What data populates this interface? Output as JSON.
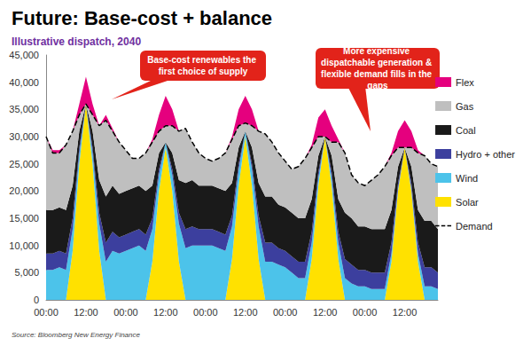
{
  "chart_data": {
    "type": "area",
    "title": "Future: Base-cost + balance",
    "subtitle": "Illustrative dispatch, 2040",
    "annotations": [
      {
        "text": "Base-cost renewables the first choice of supply"
      },
      {
        "text": "More expensive dispatchable generation & flexible demand fills in the gaps"
      }
    ],
    "source": "Source: Bloomberg New Energy Finance",
    "stacked": true,
    "grid": false,
    "legend": "right",
    "categories": [
      "00:00",
      null,
      null,
      null,
      null,
      null,
      "12:00",
      null,
      null,
      null,
      null,
      null,
      "00:00",
      null,
      null,
      null,
      null,
      null,
      "12:00",
      null,
      null,
      null,
      null,
      null,
      "00:00",
      null,
      null,
      null,
      null,
      null,
      "12:00",
      null,
      null,
      null,
      null,
      null,
      "00:00",
      null,
      null,
      null,
      null,
      null,
      "12:00",
      null,
      null,
      null,
      null,
      null,
      "00:00",
      null,
      null,
      null,
      null,
      null,
      "12:00",
      null,
      null,
      null,
      null,
      null
    ],
    "ylim": [
      0,
      45000
    ],
    "yticks": [
      0,
      {
        "value": 5000,
        "label": "5,000"
      },
      {
        "value": 10000,
        "label": "10,000"
      },
      {
        "value": 15000,
        "label": "15,000"
      },
      {
        "value": 20000,
        "label": "20,000"
      },
      {
        "value": 25000,
        "label": "25,000"
      },
      {
        "value": 30000,
        "label": "30,000"
      },
      {
        "value": 35000,
        "label": "35,000"
      },
      {
        "value": 40000,
        "label": "40,000"
      },
      {
        "value": 45000,
        "label": "45,000"
      }
    ],
    "series": [
      {
        "name": "Solar",
        "type": "area",
        "color": "#ffe100",
        "values": [
          0,
          0,
          0,
          0,
          9000,
          25000,
          36000,
          25000,
          9000,
          0,
          0,
          0,
          0,
          0,
          0,
          0,
          7000,
          20000,
          28000,
          20000,
          7000,
          0,
          0,
          0,
          0,
          0,
          0,
          0,
          7500,
          21000,
          30000,
          21000,
          7500,
          0,
          0,
          0,
          0,
          0,
          0,
          0,
          7500,
          21000,
          30000,
          21000,
          7500,
          0,
          0,
          0,
          0,
          0,
          0,
          0,
          7000,
          20000,
          28000,
          20000,
          7000,
          0,
          0,
          0
        ]
      },
      {
        "name": "Wind",
        "type": "area",
        "color": "#4cc3ea",
        "values": [
          5500,
          5500,
          6000,
          5500,
          4000,
          2000,
          0,
          2000,
          5000,
          7000,
          9000,
          8500,
          9000,
          9500,
          10000,
          9000,
          6000,
          3000,
          1000,
          3000,
          7000,
          9500,
          10000,
          10000,
          10000,
          10000,
          9500,
          9000,
          6000,
          3000,
          1000,
          3000,
          6000,
          7000,
          7000,
          6500,
          6000,
          5000,
          4000,
          4000,
          3000,
          1500,
          0,
          1500,
          3000,
          4000,
          3000,
          2500,
          2500,
          2000,
          2000,
          2000,
          1500,
          500,
          0,
          500,
          1500,
          2500,
          2500,
          2000
        ]
      },
      {
        "name": "Hydro + other",
        "type": "area",
        "color": "#3c3f9e",
        "values": [
          3000,
          3000,
          3000,
          3000,
          2000,
          1000,
          0,
          1000,
          2000,
          3500,
          3500,
          3000,
          3000,
          3000,
          3000,
          3000,
          2000,
          1000,
          0,
          1000,
          2000,
          3500,
          3500,
          3000,
          3000,
          3000,
          3000,
          3000,
          2000,
          1000,
          0,
          1000,
          2000,
          3500,
          3500,
          3000,
          3000,
          3000,
          3000,
          3000,
          2000,
          1000,
          0,
          1000,
          2000,
          3500,
          3500,
          3000,
          3000,
          3000,
          3000,
          3000,
          2000,
          1000,
          0,
          1000,
          2000,
          3500,
          3500,
          3000
        ]
      },
      {
        "name": "Coal",
        "type": "area",
        "color": "#1a1a1a",
        "values": [
          8000,
          8000,
          8000,
          8000,
          6000,
          3000,
          0,
          3000,
          6000,
          8500,
          8500,
          8000,
          8000,
          8000,
          8000,
          8000,
          6000,
          3000,
          0,
          3000,
          6000,
          8500,
          8500,
          8000,
          8000,
          8000,
          8000,
          8000,
          6000,
          3000,
          0,
          3000,
          6000,
          8500,
          8500,
          8000,
          8000,
          8000,
          8000,
          8000,
          6000,
          3000,
          0,
          3000,
          6000,
          8500,
          8500,
          8000,
          8000,
          8000,
          8000,
          8000,
          6000,
          3000,
          0,
          3000,
          6000,
          8500,
          8500,
          8000
        ]
      },
      {
        "name": "Gas",
        "type": "area",
        "color": "#bfbfbf",
        "values": [
          13500,
          10500,
          10000,
          12000,
          10000,
          3000,
          0,
          3000,
          10000,
          14000,
          10000,
          9500,
          7500,
          5500,
          5000,
          7000,
          8000,
          4000,
          3000,
          5000,
          9000,
          10000,
          7000,
          6000,
          5000,
          4500,
          5500,
          7000,
          8000,
          4000,
          1500,
          4000,
          9500,
          11500,
          10000,
          9500,
          8500,
          8000,
          9500,
          11000,
          9500,
          3500,
          0,
          2500,
          10500,
          11000,
          8000,
          8000,
          7500,
          9000,
          10000,
          11500,
          10000,
          3500,
          0,
          3500,
          10500,
          12000,
          10500,
          11500
        ]
      },
      {
        "name": "Flex",
        "type": "area",
        "color": "#e5007e",
        "values": [
          0,
          500,
          500,
          0,
          0,
          2000,
          5000,
          2000,
          0,
          1000,
          500,
          0,
          0,
          0,
          0,
          0,
          500,
          3000,
          5500,
          3000,
          0,
          0,
          0,
          0,
          0,
          0,
          0,
          0,
          500,
          3000,
          5000,
          3000,
          0,
          0,
          0,
          0,
          0,
          0,
          0,
          0,
          500,
          3500,
          5000,
          3000,
          500,
          0,
          0,
          0,
          0,
          0,
          0,
          0,
          500,
          3000,
          5000,
          3000,
          500,
          0,
          0,
          0
        ]
      },
      {
        "name": "Demand",
        "type": "line",
        "line_style": "dashed",
        "color": "#000000",
        "values": [
          30000,
          27000,
          27000,
          28500,
          31000,
          34000,
          36000,
          34000,
          32000,
          33000,
          31000,
          29000,
          27500,
          26000,
          26000,
          27000,
          29000,
          31000,
          32000,
          32000,
          31000,
          31500,
          29000,
          27000,
          26000,
          25500,
          26000,
          27000,
          29500,
          32000,
          32500,
          32000,
          31000,
          30500,
          29000,
          27000,
          25500,
          24000,
          24500,
          26000,
          28000,
          30000,
          30000,
          29000,
          29000,
          27000,
          23000,
          21500,
          21000,
          22000,
          23000,
          24500,
          26500,
          28000,
          28000,
          28000,
          27000,
          26500,
          25000,
          24500
        ]
      }
    ]
  }
}
